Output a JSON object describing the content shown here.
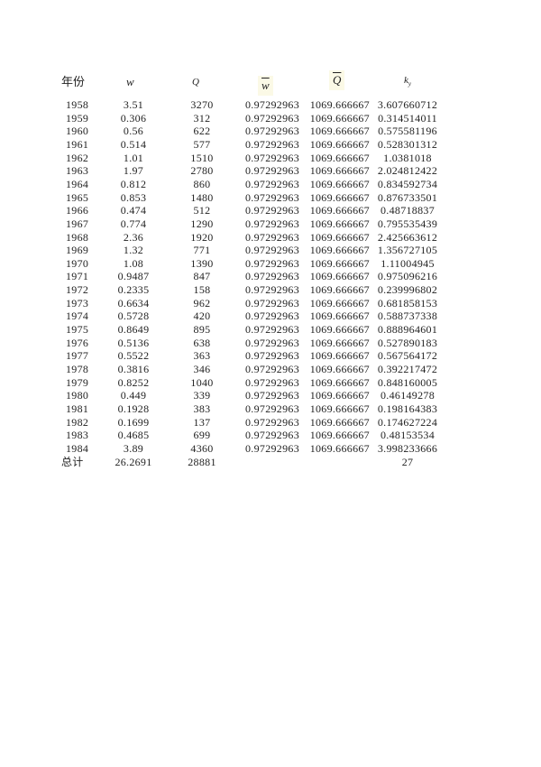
{
  "headers": {
    "year": "年份",
    "w": "w",
    "Q": "Q",
    "w_mean": "w",
    "Q_mean": "Q",
    "ky": "k",
    "ky_sub": "y"
  },
  "highlight_color": "#fbf9e6",
  "rows": [
    [
      "1958",
      "3.51",
      "3270",
      "0.97292963",
      "1069.666667",
      "3.607660712"
    ],
    [
      "1959",
      "0.306",
      "312",
      "0.97292963",
      "1069.666667",
      "0.314514011"
    ],
    [
      "1960",
      "0.56",
      "622",
      "0.97292963",
      "1069.666667",
      "0.575581196"
    ],
    [
      "1961",
      "0.514",
      "577",
      "0.97292963",
      "1069.666667",
      "0.528301312"
    ],
    [
      "1962",
      "1.01",
      "1510",
      "0.97292963",
      "1069.666667",
      "1.0381018"
    ],
    [
      "1963",
      "1.97",
      "2780",
      "0.97292963",
      "1069.666667",
      "2.024812422"
    ],
    [
      "1964",
      "0.812",
      "860",
      "0.97292963",
      "1069.666667",
      "0.834592734"
    ],
    [
      "1965",
      "0.853",
      "1480",
      "0.97292963",
      "1069.666667",
      "0.876733501"
    ],
    [
      "1966",
      "0.474",
      "512",
      "0.97292963",
      "1069.666667",
      "0.48718837"
    ],
    [
      "1967",
      "0.774",
      "1290",
      "0.97292963",
      "1069.666667",
      "0.795535439"
    ],
    [
      "1968",
      "2.36",
      "1920",
      "0.97292963",
      "1069.666667",
      "2.425663612"
    ],
    [
      "1969",
      "1.32",
      "771",
      "0.97292963",
      "1069.666667",
      "1.356727105"
    ],
    [
      "1970",
      "1.08",
      "1390",
      "0.97292963",
      "1069.666667",
      "1.11004945"
    ],
    [
      "1971",
      "0.9487",
      "847",
      "0.97292963",
      "1069.666667",
      "0.975096216"
    ],
    [
      "1972",
      "0.2335",
      "158",
      "0.97292963",
      "1069.666667",
      "0.239996802"
    ],
    [
      "1973",
      "0.6634",
      "962",
      "0.97292963",
      "1069.666667",
      "0.681858153"
    ],
    [
      "1974",
      "0.5728",
      "420",
      "0.97292963",
      "1069.666667",
      "0.588737338"
    ],
    [
      "1975",
      "0.8649",
      "895",
      "0.97292963",
      "1069.666667",
      "0.888964601"
    ],
    [
      "1976",
      "0.5136",
      "638",
      "0.97292963",
      "1069.666667",
      "0.527890183"
    ],
    [
      "1977",
      "0.5522",
      "363",
      "0.97292963",
      "1069.666667",
      "0.567564172"
    ],
    [
      "1978",
      "0.3816",
      "346",
      "0.97292963",
      "1069.666667",
      "0.392217472"
    ],
    [
      "1979",
      "0.8252",
      "1040",
      "0.97292963",
      "1069.666667",
      "0.848160005"
    ],
    [
      "1980",
      "0.449",
      "339",
      "0.97292963",
      "1069.666667",
      "0.46149278"
    ],
    [
      "1981",
      "0.1928",
      "383",
      "0.97292963",
      "1069.666667",
      "0.198164383"
    ],
    [
      "1982",
      "0.1699",
      "137",
      "0.97292963",
      "1069.666667",
      "0.174627224"
    ],
    [
      "1983",
      "0.4685",
      "699",
      "0.97292963",
      "1069.666667",
      "0.48153534"
    ],
    [
      "1984",
      "3.89",
      "4360",
      "0.97292963",
      "1069.666667",
      "3.998233666"
    ]
  ],
  "total": {
    "label": "总计",
    "w": "26.2691",
    "Q": "28881",
    "ky": "27"
  }
}
